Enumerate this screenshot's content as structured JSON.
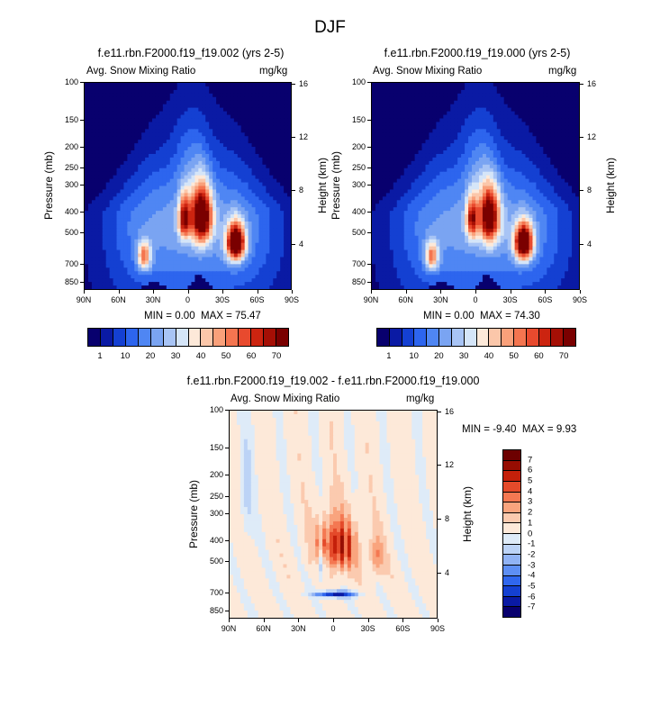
{
  "page_title": "DJF",
  "palette": {
    "sequential": [
      "#08006e",
      "#0a1aa4",
      "#1440d2",
      "#2d65ee",
      "#4f86f3",
      "#7aa4f2",
      "#a8c4f5",
      "#d5e5f8",
      "#fde9d9",
      "#fbc7aa",
      "#f9a07a",
      "#f47550",
      "#e84a2e",
      "#cc2410",
      "#a50f05",
      "#7a0000"
    ],
    "diverging": [
      "#08006e",
      "#0a1aa4",
      "#1440d2",
      "#3067ee",
      "#5e8ff4",
      "#91b3f4",
      "#bcd3f6",
      "#deebf8",
      "#fde9d9",
      "#fbcaaf",
      "#f9a47e",
      "#f47852",
      "#e44a2a",
      "#c4200a",
      "#960d02",
      "#6d0000"
    ]
  },
  "chart_data": [
    {
      "type": "heatmap",
      "id": "panel_left",
      "title": "f.e11.rbn.F2000.f19_f19.002 (yrs 2-5)",
      "left_label": "Avg. Snow Mixing Ratio",
      "right_label": "mg/kg",
      "ylabel": "Pressure (mb)",
      "ylabel_right": "Height (km)",
      "x_ticks": [
        "90N",
        "60N",
        "30N",
        "0",
        "30S",
        "60S",
        "90S"
      ],
      "y_ticks": [
        "100",
        "150",
        "200",
        "250",
        "300",
        "400",
        "500",
        "700",
        "850"
      ],
      "y2_ticks": [
        "16",
        "12",
        "8",
        "4"
      ],
      "xlim": [
        90,
        -90
      ],
      "ylim_mb": [
        100,
        925
      ],
      "stats": {
        "min_label": "MIN =",
        "min": "0.00",
        "max_label": "MAX =",
        "max": "75.47"
      },
      "colorbar_labels": [
        "1",
        "10",
        "20",
        "30",
        "40",
        "50",
        "60",
        "70"
      ],
      "blobs": [
        {
          "lat": 38,
          "p": 650,
          "slat": 6,
          "sp": 100,
          "amp": 38
        },
        {
          "lat": 3,
          "p": 430,
          "slat": 5,
          "sp": 100,
          "amp": 50
        },
        {
          "lat": -12,
          "p": 420,
          "slat": 9,
          "sp": 130,
          "amp": 70
        },
        {
          "lat": -42,
          "p": 560,
          "slat": 8,
          "sp": 110,
          "amp": 75.47
        }
      ]
    },
    {
      "type": "heatmap",
      "id": "panel_right",
      "title": "f.e11.rbn.F2000.f19_f19.000 (yrs 2-5)",
      "left_label": "Avg. Snow Mixing Ratio",
      "right_label": "mg/kg",
      "ylabel": "Pressure (mb)",
      "ylabel_right": "Height (km)",
      "x_ticks": [
        "90N",
        "60N",
        "30N",
        "0",
        "30S",
        "60S",
        "90S"
      ],
      "y_ticks": [
        "100",
        "150",
        "200",
        "250",
        "300",
        "400",
        "500",
        "700",
        "850"
      ],
      "y2_ticks": [
        "16",
        "12",
        "8",
        "4"
      ],
      "xlim": [
        90,
        -90
      ],
      "ylim_mb": [
        100,
        925
      ],
      "stats": {
        "min_label": "MIN =",
        "min": "0.00",
        "max_label": "MAX =",
        "max": "74.30"
      },
      "colorbar_labels": [
        "1",
        "10",
        "20",
        "30",
        "40",
        "50",
        "60",
        "70"
      ],
      "blobs": [
        {
          "lat": 38,
          "p": 650,
          "slat": 6,
          "sp": 100,
          "amp": 37
        },
        {
          "lat": 3,
          "p": 430,
          "slat": 5,
          "sp": 100,
          "amp": 45
        },
        {
          "lat": -12,
          "p": 420,
          "slat": 9,
          "sp": 130,
          "amp": 62
        },
        {
          "lat": -42,
          "p": 560,
          "slat": 8,
          "sp": 110,
          "amp": 74.3
        }
      ]
    },
    {
      "type": "heatmap",
      "id": "panel_diff",
      "title": "f.e11.rbn.F2000.f19_f19.002 - f.e11.rbn.F2000.f19_f19.000",
      "left_label": "Avg. Snow Mixing Ratio",
      "right_label": "mg/kg",
      "ylabel": "Pressure (mb)",
      "ylabel_right": "Height (km)",
      "x_ticks": [
        "90N",
        "60N",
        "30N",
        "0",
        "30S",
        "60S",
        "90S"
      ],
      "y_ticks": [
        "100",
        "150",
        "200",
        "250",
        "300",
        "400",
        "500",
        "700",
        "850"
      ],
      "y2_ticks": [
        "16",
        "12",
        "8",
        "4"
      ],
      "xlim": [
        90,
        -90
      ],
      "ylim_mb": [
        100,
        925
      ],
      "stats": {
        "min_label": "MIN =",
        "min": "-9.40",
        "max_label": "MAX =",
        "max": "9.93"
      },
      "colorbar_labels": [
        "7",
        "6",
        "5",
        "4",
        "3",
        "2",
        "1",
        "0",
        "-1",
        "-2",
        "-3",
        "-4",
        "-5",
        "-6",
        "-7"
      ]
    }
  ]
}
